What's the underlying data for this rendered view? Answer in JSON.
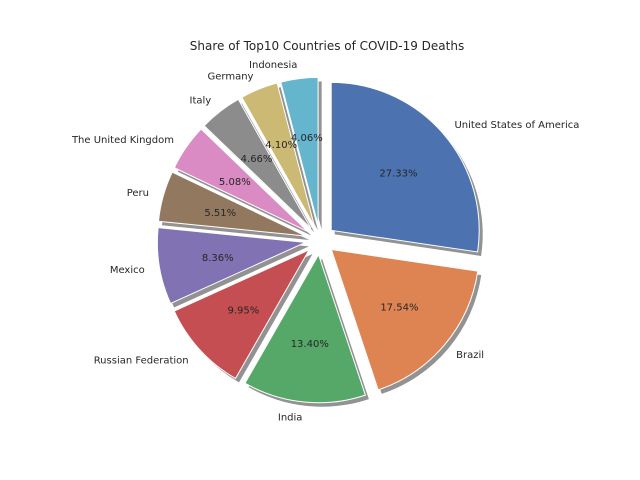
{
  "chart_data": {
    "type": "pie",
    "title": "Share of Top10 Countries of COVID-19 Deaths",
    "startangle_deg": 90,
    "counterclock": false,
    "shadow": true,
    "explode": 0.1,
    "slices": [
      {
        "label": "United States of America",
        "value": 27.33,
        "pct_text": "27.33%",
        "color": "#4c72b0"
      },
      {
        "label": "Brazil",
        "value": 17.54,
        "pct_text": "17.54%",
        "color": "#dd8452"
      },
      {
        "label": "India",
        "value": 13.4,
        "pct_text": "13.40%",
        "color": "#55a868"
      },
      {
        "label": "Russian Federation",
        "value": 9.95,
        "pct_text": "9.95%",
        "color": "#c44e52"
      },
      {
        "label": "Mexico",
        "value": 8.36,
        "pct_text": "8.36%",
        "color": "#8172b3"
      },
      {
        "label": "Peru",
        "value": 5.51,
        "pct_text": "5.51%",
        "color": "#937860"
      },
      {
        "label": "The United Kingdom",
        "value": 5.08,
        "pct_text": "5.08%",
        "color": "#da8bc3"
      },
      {
        "label": "Italy",
        "value": 4.66,
        "pct_text": "4.66%",
        "color": "#8c8c8c"
      },
      {
        "label": "Germany",
        "value": 4.1,
        "pct_text": "4.10%",
        "color": "#ccb974"
      },
      {
        "label": "Indonesia",
        "value": 4.06,
        "pct_text": "4.06%",
        "color": "#64b5cd"
      }
    ]
  }
}
